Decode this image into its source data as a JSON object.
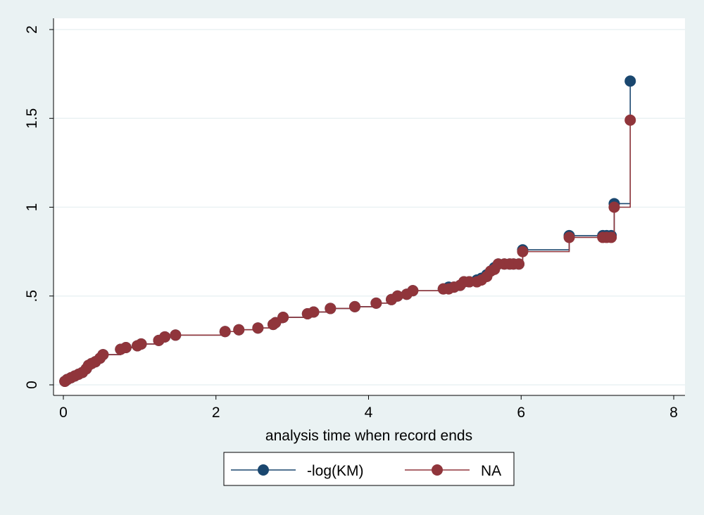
{
  "chart_data": {
    "type": "line",
    "xlabel": "analysis time when record ends",
    "ylabel": "",
    "xlim": [
      0,
      8
    ],
    "ylim": [
      0,
      2
    ],
    "x_ticks": [
      0,
      2,
      4,
      6,
      8
    ],
    "x_tick_labels": [
      "0",
      "2",
      "4",
      "6",
      "8"
    ],
    "y_ticks": [
      0,
      0.5,
      1,
      1.5,
      2
    ],
    "y_tick_labels": [
      "0",
      ".5",
      "1",
      "1.5",
      "2"
    ],
    "grid": true,
    "legend_position": "bottom",
    "series": [
      {
        "name": "-log(KM)",
        "color": "#1a476f",
        "x": [
          0.02,
          0.05,
          0.1,
          0.15,
          0.2,
          0.25,
          0.3,
          0.33,
          0.37,
          0.42,
          0.48,
          0.52,
          0.75,
          0.82,
          0.97,
          1.02,
          1.25,
          1.33,
          1.47,
          2.12,
          2.3,
          2.55,
          2.75,
          2.78,
          2.88,
          3.2,
          3.28,
          3.5,
          3.82,
          4.1,
          4.3,
          4.38,
          4.5,
          4.58,
          4.98,
          5.05,
          5.12,
          5.2,
          5.25,
          5.32,
          5.42,
          5.48,
          5.55,
          5.6,
          5.65,
          5.7,
          5.78,
          5.85,
          5.9,
          5.97,
          6.02,
          6.63,
          7.07,
          7.12,
          7.18,
          7.22,
          7.43
        ],
        "y": [
          0.02,
          0.03,
          0.04,
          0.05,
          0.06,
          0.07,
          0.09,
          0.11,
          0.12,
          0.13,
          0.15,
          0.17,
          0.2,
          0.21,
          0.22,
          0.23,
          0.25,
          0.27,
          0.28,
          0.3,
          0.31,
          0.32,
          0.34,
          0.35,
          0.38,
          0.4,
          0.41,
          0.43,
          0.44,
          0.46,
          0.48,
          0.5,
          0.51,
          0.53,
          0.54,
          0.55,
          0.55,
          0.56,
          0.58,
          0.58,
          0.59,
          0.6,
          0.62,
          0.64,
          0.66,
          0.68,
          0.68,
          0.68,
          0.68,
          0.68,
          0.76,
          0.84,
          0.84,
          0.84,
          0.84,
          1.02,
          1.71
        ]
      },
      {
        "name": "NA",
        "color": "#90353b",
        "x": [
          0.02,
          0.05,
          0.1,
          0.15,
          0.2,
          0.25,
          0.3,
          0.33,
          0.37,
          0.42,
          0.48,
          0.52,
          0.75,
          0.82,
          0.97,
          1.02,
          1.25,
          1.33,
          1.47,
          2.12,
          2.3,
          2.55,
          2.75,
          2.78,
          2.88,
          3.2,
          3.28,
          3.5,
          3.82,
          4.1,
          4.3,
          4.38,
          4.5,
          4.58,
          4.98,
          5.05,
          5.12,
          5.2,
          5.25,
          5.32,
          5.42,
          5.48,
          5.55,
          5.6,
          5.65,
          5.7,
          5.78,
          5.85,
          5.9,
          5.97,
          6.02,
          6.63,
          7.07,
          7.12,
          7.18,
          7.22,
          7.43
        ],
        "y": [
          0.02,
          0.03,
          0.04,
          0.05,
          0.06,
          0.07,
          0.09,
          0.11,
          0.12,
          0.13,
          0.15,
          0.17,
          0.2,
          0.21,
          0.22,
          0.23,
          0.25,
          0.27,
          0.28,
          0.3,
          0.31,
          0.32,
          0.34,
          0.35,
          0.38,
          0.4,
          0.41,
          0.43,
          0.44,
          0.46,
          0.48,
          0.5,
          0.51,
          0.53,
          0.54,
          0.54,
          0.55,
          0.56,
          0.58,
          0.58,
          0.58,
          0.59,
          0.61,
          0.64,
          0.65,
          0.68,
          0.68,
          0.68,
          0.68,
          0.68,
          0.75,
          0.83,
          0.83,
          0.83,
          0.83,
          1.0,
          1.49
        ]
      }
    ]
  }
}
